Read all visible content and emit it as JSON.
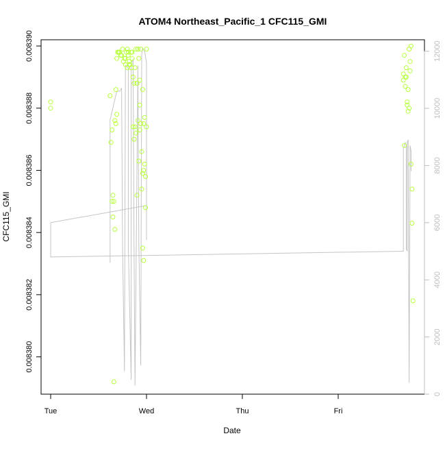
{
  "chart_data": {
    "type": "scatter",
    "title": "ATOM4 Northeast_Pacific_1 CFC115_GMI",
    "xlabel": "Date",
    "ylabel": "CFC115_GMI",
    "x_ticks": [
      "Tue",
      "Wed",
      "Thu",
      "Fri"
    ],
    "y_ticks": [
      "0.008380",
      "0.008382",
      "0.008384",
      "0.008386",
      "0.008388",
      "0.008390"
    ],
    "y2_ticks": [
      "0",
      "2000",
      "4000",
      "6000",
      "8000",
      "10000",
      "12000"
    ],
    "xlim_days": [
      -0.1,
      3.9
    ],
    "ylim": [
      0.0083788,
      0.0083902
    ],
    "y2lim": [
      0,
      12400
    ],
    "grid": false,
    "colors": {
      "points": "#b7ff3c",
      "line": "#c4c4c4",
      "axes": "#000000",
      "y2_axis": "#bdbdbd"
    },
    "series": [
      {
        "kind": "points",
        "x_days": [
          0.0,
          0.0,
          0.62,
          0.63,
          0.64,
          0.64,
          0.65,
          0.65,
          0.66,
          0.66,
          0.67,
          0.67,
          0.68,
          0.68,
          0.69,
          0.69,
          0.7,
          0.7,
          0.71,
          0.72,
          0.73,
          0.74,
          0.75,
          0.76,
          0.77,
          0.78,
          0.78,
          0.79,
          0.8,
          0.8,
          0.81,
          0.81,
          0.82,
          0.82,
          0.83,
          0.84,
          0.84,
          0.85,
          0.85,
          0.86,
          0.86,
          0.87,
          0.87,
          0.88,
          0.88,
          0.89,
          0.89,
          0.9,
          0.9,
          0.9,
          0.91,
          0.91,
          0.92,
          0.92,
          0.93,
          0.93,
          0.93,
          0.94,
          0.94,
          0.95,
          0.95,
          0.96,
          0.96,
          0.96,
          0.97,
          0.97,
          0.97,
          0.98,
          0.98,
          0.99,
          0.99,
          1.0,
          1.0,
          3.68,
          3.68,
          3.69,
          3.69,
          3.7,
          3.7,
          3.71,
          3.71,
          3.72,
          3.72,
          3.73,
          3.73,
          3.74,
          3.74,
          3.75,
          3.75,
          3.76,
          3.76,
          3.77,
          3.77,
          3.78
        ],
        "y": [
          0.0083882,
          0.008388,
          0.0083884,
          0.0083869,
          0.0083873,
          0.008385,
          0.0083852,
          0.0083845,
          0.008385,
          0.0083792,
          0.0083841,
          0.0083876,
          0.0083886,
          0.0083875,
          0.0083878,
          0.0083896,
          0.0083898,
          0.0083898,
          0.0083898,
          0.0083898,
          0.0083897,
          0.0083897,
          0.0083899,
          0.0083895,
          0.0083896,
          0.0083896,
          0.0083894,
          0.0083898,
          0.0083899,
          0.0083893,
          0.0083897,
          0.0083898,
          0.0083895,
          0.0083894,
          0.0083894,
          0.0083898,
          0.0083893,
          0.0083898,
          0.0083896,
          0.008389,
          0.0083874,
          0.008387,
          0.0083888,
          0.0083893,
          0.0083874,
          0.0083899,
          0.0083872,
          0.0083888,
          0.0083888,
          0.0083852,
          0.0083899,
          0.0083876,
          0.0083896,
          0.0083863,
          0.0083881,
          0.0083873,
          0.0083889,
          0.0083899,
          0.0083875,
          0.0083866,
          0.0083854,
          0.0083859,
          0.0083835,
          0.0083886,
          0.008386,
          0.0083875,
          0.0083831,
          0.0083862,
          0.0083877,
          0.0083848,
          0.0083858,
          0.0083874,
          0.0083899,
          0.0083891,
          0.0083889,
          0.0083897,
          0.0083868,
          0.0083887,
          0.008389,
          0.0083893,
          0.008389,
          0.0083881,
          0.0083882,
          0.0083886,
          0.0083879,
          0.0083899,
          0.008388,
          0.0083892,
          0.0083895,
          0.0083862,
          0.00839,
          0.0083854,
          0.0083843,
          0.0083818
        ]
      },
      {
        "kind": "line",
        "x_days": [
          0.0,
          0.0,
          3.68,
          3.68,
          3.7,
          3.7,
          3.71,
          3.71,
          3.72,
          3.72,
          3.73,
          3.73,
          3.74,
          3.74,
          3.75,
          3.75,
          3.76,
          3.76
        ],
        "y2": [
          6000,
          4800,
          5000,
          8600,
          8800,
          8800,
          8700,
          5100,
          5000,
          8800,
          8900,
          8700,
          400,
          500,
          8600,
          8700,
          8500,
          7800
        ]
      },
      {
        "kind": "line",
        "x_days": [
          0.62,
          0.62,
          0.69,
          0.72,
          0.74,
          0.75,
          0.77,
          0.78,
          0.81,
          0.81,
          0.84,
          0.84,
          0.86,
          0.87,
          0.88,
          0.91,
          0.91,
          0.92,
          0.94,
          0.95,
          0.96,
          0.98,
          1.0,
          1.0,
          1.0
        ],
        "y2": [
          4600,
          9600,
          10600,
          10600,
          10700,
          5200,
          800,
          11500,
          11400,
          5200,
          500,
          11600,
          11700,
          5100,
          300,
          11400,
          11500,
          5300,
          1000,
          11900,
          12100,
          12000,
          11600,
          6600,
          5400
        ]
      },
      {
        "kind": "line",
        "x_days": [
          0.0,
          1.0
        ],
        "y2": [
          6000,
          6600
        ]
      }
    ]
  }
}
